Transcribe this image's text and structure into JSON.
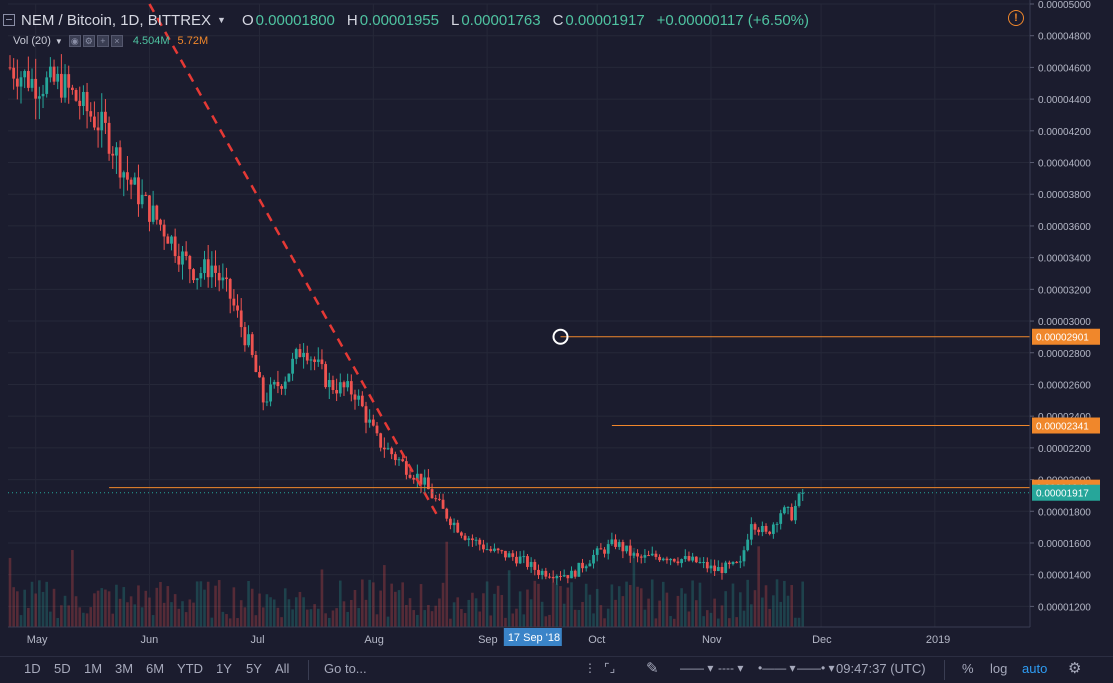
{
  "header": {
    "symbol": "NEM / Bitcoin, 1D, BITTREX",
    "open_label": "O",
    "open": "0.00001800",
    "high_label": "H",
    "high": "0.00001955",
    "low_label": "L",
    "low": "0.00001763",
    "close_label": "C",
    "close": "0.00001917",
    "change": "+0.00000117 (+6.50%)",
    "warning_glyph": "!"
  },
  "volume": {
    "label": "Vol (20)",
    "value_green": "4.504M",
    "value_red": "5.72M"
  },
  "toolbar": {
    "ranges": [
      "1D",
      "5D",
      "1M",
      "3M",
      "6M",
      "YTD",
      "1Y",
      "5Y",
      "All"
    ],
    "goto": "Go to...",
    "time": "09:47:37 (UTC)",
    "percent": "%",
    "log": "log",
    "auto": "auto"
  },
  "chart_data": {
    "type": "candlestick",
    "x_ticks": [
      "May",
      "Jun",
      "Jul",
      "Aug",
      "Sep",
      "Oct",
      "Nov",
      "Dec",
      "2019"
    ],
    "crosshair_date": "17 Sep '18",
    "y_ticks": [
      "0.00005000",
      "0.00004800",
      "0.00004600",
      "0.00004400",
      "0.00004200",
      "0.00004000",
      "0.00003800",
      "0.00003600",
      "0.00003400",
      "0.00003200",
      "0.00003000",
      "0.00002800",
      "0.00002600",
      "0.00002400",
      "0.00002200",
      "0.00002000",
      "0.00001800",
      "0.00001600",
      "0.00001400",
      "0.00001200"
    ],
    "y_tick_values": [
      5e-05,
      4.8e-05,
      4.6e-05,
      4.4e-05,
      4.2e-05,
      4e-05,
      3.8e-05,
      3.6e-05,
      3.4e-05,
      3.2e-05,
      3e-05,
      2.8e-05,
      2.6e-05,
      2.4e-05,
      2.2e-05,
      2e-05,
      1.8e-05,
      1.6e-05,
      1.4e-05,
      1.2e-05
    ],
    "ylim": [
      1.07e-05,
      5e-05
    ],
    "date_range": [
      "2018-04-24",
      "2018-11-26"
    ],
    "month_starts": [
      "2018-05-01",
      "2018-06-01",
      "2018-07-01",
      "2018-08-01",
      "2018-09-01",
      "2018-10-01",
      "2018-11-01",
      "2018-12-01",
      "2019-01-01"
    ],
    "close_path": [
      [
        "2018-04-24",
        4.6e-05
      ],
      [
        "2018-05-01",
        4.5e-05
      ],
      [
        "2018-05-08",
        4.5e-05
      ],
      [
        "2018-05-14",
        4.35e-05
      ],
      [
        "2018-05-20",
        4.2e-05
      ],
      [
        "2018-05-26",
        3.9e-05
      ],
      [
        "2018-06-01",
        3.7e-05
      ],
      [
        "2018-06-06",
        3.55e-05
      ],
      [
        "2018-06-10",
        3.4e-05
      ],
      [
        "2018-06-14",
        3.3e-05
      ],
      [
        "2018-06-18",
        3.35e-05
      ],
      [
        "2018-06-23",
        3.15e-05
      ],
      [
        "2018-06-28",
        2.85e-05
      ],
      [
        "2018-07-02",
        2.5e-05
      ],
      [
        "2018-07-08",
        2.65e-05
      ],
      [
        "2018-07-13",
        2.85e-05
      ],
      [
        "2018-07-20",
        2.6e-05
      ],
      [
        "2018-07-27",
        2.55e-05
      ],
      [
        "2018-08-02",
        2.25e-05
      ],
      [
        "2018-08-09",
        2.1e-05
      ],
      [
        "2018-08-14",
        2e-05
      ],
      [
        "2018-08-20",
        1.8e-05
      ],
      [
        "2018-08-26",
        1.65e-05
      ],
      [
        "2018-09-02",
        1.55e-05
      ],
      [
        "2018-09-10",
        1.5e-05
      ],
      [
        "2018-09-15",
        1.42e-05
      ],
      [
        "2018-09-24",
        1.4e-05
      ],
      [
        "2018-09-30",
        1.52e-05
      ],
      [
        "2018-10-06",
        1.6e-05
      ],
      [
        "2018-10-12",
        1.5e-05
      ],
      [
        "2018-10-19",
        1.52e-05
      ],
      [
        "2018-10-28",
        1.48e-05
      ],
      [
        "2018-11-02",
        1.43e-05
      ],
      [
        "2018-11-09",
        1.46e-05
      ],
      [
        "2018-11-12",
        1.75e-05
      ],
      [
        "2018-11-16",
        1.65e-05
      ],
      [
        "2018-11-20",
        1.8e-05
      ],
      [
        "2018-11-23",
        1.78e-05
      ],
      [
        "2018-11-26",
        1.92e-05
      ]
    ],
    "last_price": 1.917e-05,
    "last_price_label": "0.00001917",
    "horizontal_lines": [
      {
        "value": 2.901e-05,
        "label": "0.00002901",
        "start": "2018-09-21"
      },
      {
        "value": 2.341e-05,
        "label": "0.00002341",
        "start": "2018-10-05"
      },
      {
        "value": 1.949e-05,
        "label": "0.00001949",
        "start": "2018-05-21"
      }
    ],
    "trendline": {
      "from": [
        "2018-06-01",
        5e-05
      ],
      "to": [
        "2018-08-19",
        1.75e-05
      ]
    },
    "colors": {
      "up": "#26a69a",
      "down": "#ef5350",
      "level": "#f0872b",
      "trend": "#e53935",
      "last": "#26a69a"
    }
  }
}
